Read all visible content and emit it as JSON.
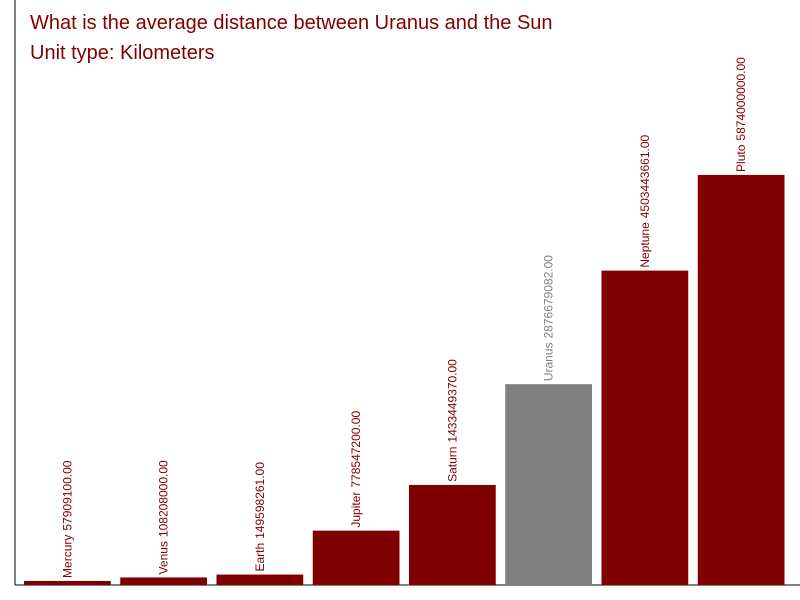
{
  "chart_data": {
    "type": "bar",
    "title": "What is the average distance between Uranus and the Sun",
    "subtitle": "Unit type: Kilometers",
    "categories": [
      "Mercury",
      "Venus",
      "Earth",
      "Jupiter",
      "Saturn",
      "Uranus",
      "Neptune",
      "Pluto"
    ],
    "values": [
      57909100,
      108208000,
      149598261,
      778547200,
      1433449370,
      2876679082,
      4503443661,
      5874000000
    ],
    "value_labels": [
      "57909100.00",
      "108208000.00",
      "149598261.00",
      "778547200.00",
      "1433449370.00",
      "2876679082.00",
      "4503443661.00",
      "5874000000.00"
    ],
    "colors": [
      "#800000",
      "#800000",
      "#800000",
      "#800000",
      "#800000",
      "#808080",
      "#800000",
      "#800000"
    ],
    "ylim": [
      0,
      8380000000
    ]
  }
}
